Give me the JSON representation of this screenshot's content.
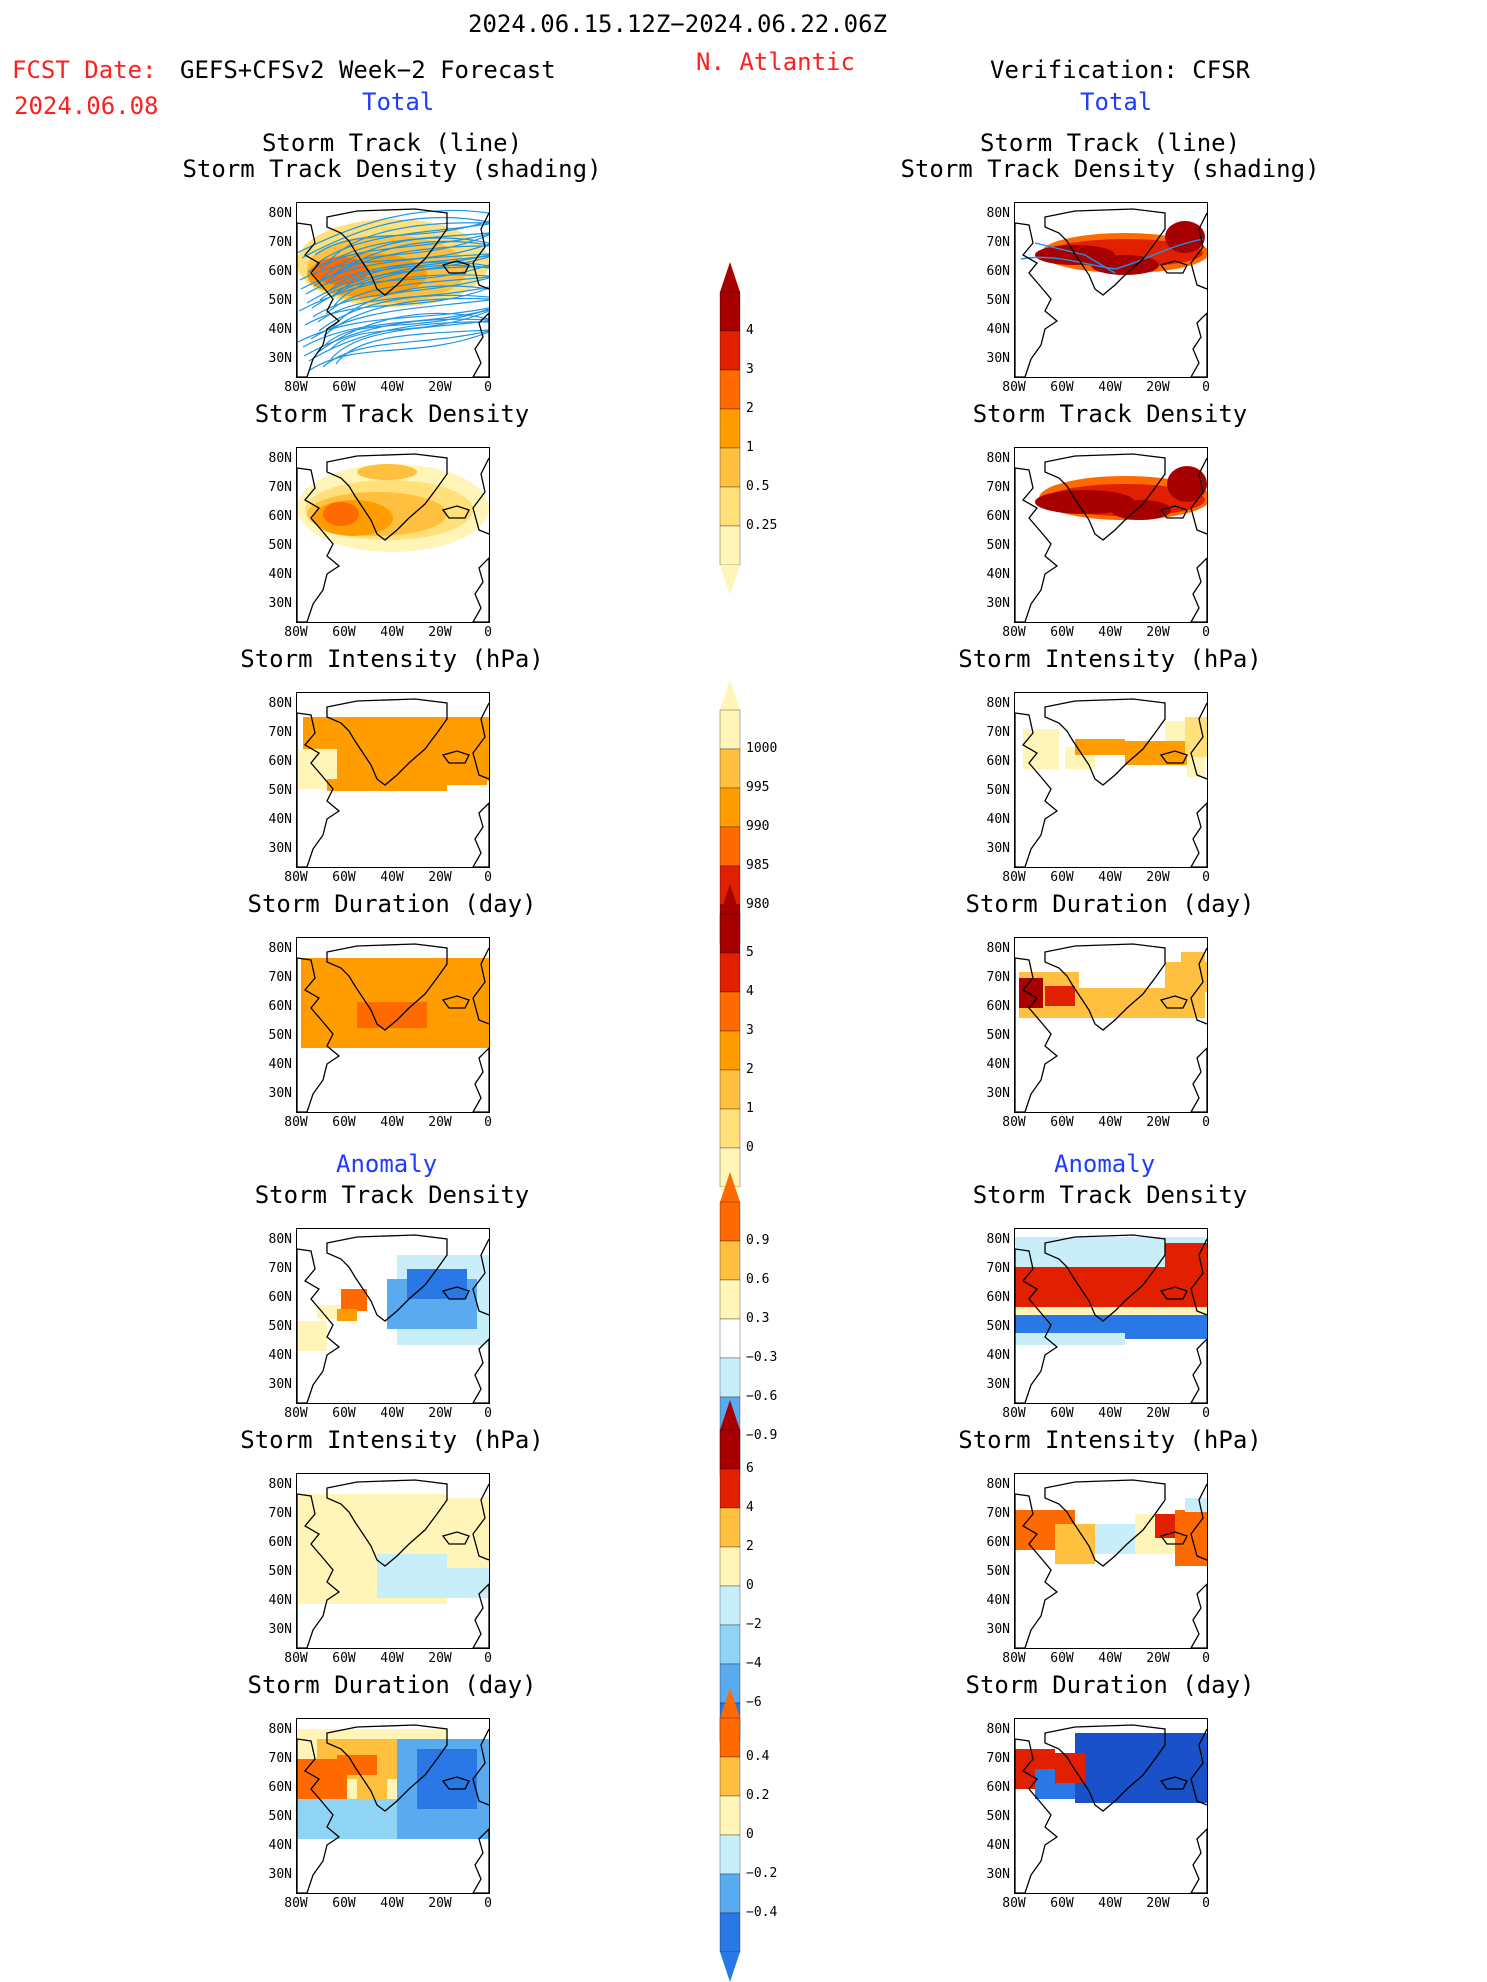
{
  "header": {
    "period": "2024.06.15.12Z−2024.06.22.06Z",
    "fcst_date_label": "FCST Date:",
    "model": "GEFS+CFSv2 Week−2 Forecast",
    "fcst_date": "2024.06.08",
    "region": "N. Atlantic",
    "verification": "Verification: CFSR"
  },
  "sections": {
    "total": "Total",
    "anomaly": "Anomaly"
  },
  "panel_titles": {
    "track_line": "Storm Track (line)",
    "track_density_shading": "Storm Track Density (shading)",
    "track_density": "Storm Track Density",
    "intensity": "Storm Intensity (hPa)",
    "duration": "Storm Duration (day)"
  },
  "axes": {
    "lat_labels": [
      "80N",
      "70N",
      "60N",
      "50N",
      "40N",
      "30N"
    ],
    "lon_labels": [
      "80W",
      "60W",
      "40W",
      "20W",
      "0"
    ]
  },
  "colorbars": {
    "density_total": [
      "4",
      "3",
      "2",
      "1",
      "0.5",
      "0.25"
    ],
    "intensity_total": [
      "1000",
      "995",
      "990",
      "985",
      "980"
    ],
    "duration_total": [
      "5",
      "4",
      "3",
      "2",
      "1",
      "0"
    ],
    "density_anom": [
      "0.9",
      "0.6",
      "0.3",
      "−0.3",
      "−0.6",
      "−0.9"
    ],
    "intensity_anom": [
      "6",
      "4",
      "2",
      "0",
      "−2",
      "−4",
      "−6"
    ],
    "duration_anom": [
      "0.4",
      "0.2",
      "0",
      "−0.2",
      "−0.4"
    ]
  },
  "colors": {
    "warm": [
      "#fff5b8",
      "#ffe07a",
      "#ffc040",
      "#ff9d00",
      "#ff6a00",
      "#e02000",
      "#a80000"
    ],
    "cool": [
      "#c8eefa",
      "#8fd3f5",
      "#5aaaf0",
      "#2a78e6",
      "#1a50c8"
    ],
    "track_line": "#1e96e6"
  }
}
